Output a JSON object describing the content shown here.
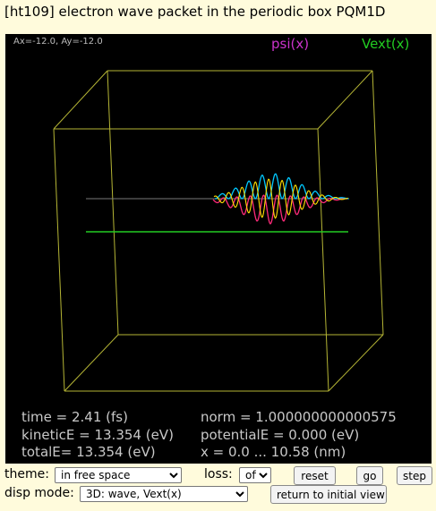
{
  "title": "[ht109] electron wave packet in the periodic box PQM1D",
  "view": {
    "angle_readout": "Ax=-12.0, Ay=-12.0",
    "legend": {
      "psi": "psi(x)",
      "vext": "Vext(x)"
    },
    "colors": {
      "background": "#000000",
      "box": "#b5b535",
      "vext": "#22cc22",
      "psi_label": "#cc33cc",
      "vext_label": "#22cc22",
      "axis": "#7a7a7a"
    }
  },
  "stats": {
    "time": "time = 2.41 (fs)",
    "norm": "norm = 1.000000000000575",
    "kinetic": "kineticE = 13.354 (eV)",
    "potential": "potentialE = 0.000 (eV)",
    "total": "totalE= 13.354 (eV)",
    "xrange": "x = 0.0 ... 10.58 (nm)"
  },
  "controls": {
    "theme_label": "theme:",
    "theme_value": "in free space",
    "loss_label": "loss:",
    "loss_value": "off",
    "reset_label": "reset",
    "go_label": "go",
    "step_label": "step",
    "disp_label": "disp mode:",
    "disp_value": "3D: wave, Vext(x)",
    "return_label": "return to initial view"
  }
}
